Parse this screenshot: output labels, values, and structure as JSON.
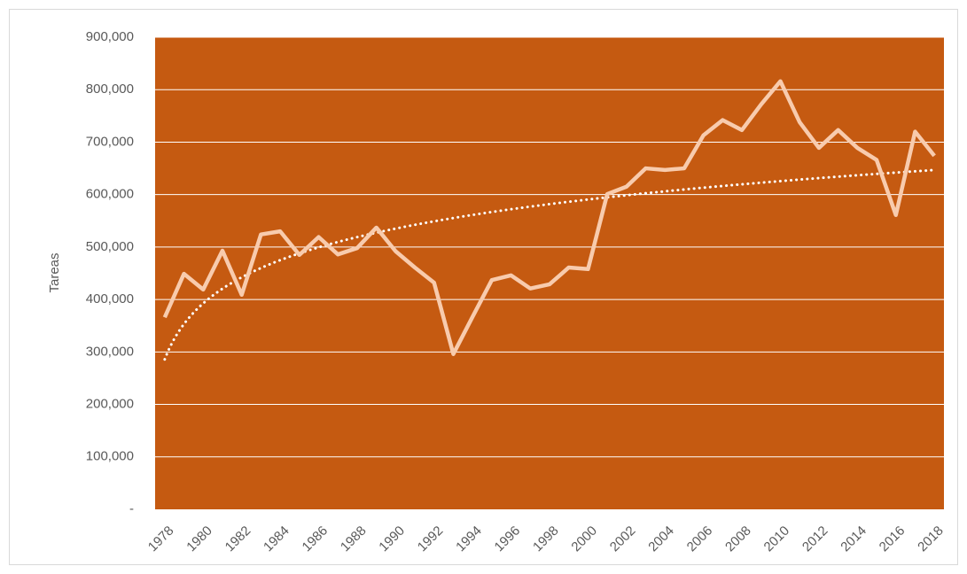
{
  "chart_data": {
    "type": "line",
    "y_label": "Tareas",
    "categories": [
      "1978",
      null,
      "1980",
      null,
      "1982",
      null,
      "1984",
      null,
      "1986",
      null,
      "1988",
      null,
      "1990",
      null,
      "1992",
      null,
      "1994",
      null,
      "1996",
      null,
      "1998",
      null,
      "2000",
      null,
      "2002",
      null,
      "2004",
      null,
      "2006",
      null,
      "2008",
      null,
      "2010",
      null,
      "2012",
      null,
      "2014",
      null,
      "2016",
      null,
      "2018"
    ],
    "series": [
      {
        "name": "Tareas",
        "color": "#F8CBAD",
        "values": [
          366000,
          449000,
          419000,
          493000,
          409000,
          524000,
          530000,
          485000,
          519000,
          486000,
          498000,
          537000,
          492000,
          461000,
          432000,
          296000,
          367000,
          437000,
          446000,
          421000,
          429000,
          461000,
          458000,
          601000,
          615000,
          650000,
          647000,
          650000,
          713000,
          742000,
          723000,
          772000,
          816000,
          738000,
          689000,
          723000,
          689000,
          666000,
          561000,
          720000,
          674000
        ]
      }
    ],
    "trendline": {
      "type": "logarithmic",
      "color": "#FFFFFF",
      "style": "dotted"
    },
    "ylim": [
      0,
      900000
    ],
    "yticks": [
      {
        "value": 0,
        "label": "-"
      },
      {
        "value": 100000,
        "label": "100,000"
      },
      {
        "value": 200000,
        "label": "200,000"
      },
      {
        "value": 300000,
        "label": "300,000"
      },
      {
        "value": 400000,
        "label": "400,000"
      },
      {
        "value": 500000,
        "label": "500,000"
      },
      {
        "value": 600000,
        "label": "600,000"
      },
      {
        "value": 700000,
        "label": "700,000"
      },
      {
        "value": 800000,
        "label": "800,000"
      },
      {
        "value": 900000,
        "label": "900,000"
      }
    ],
    "grid": true,
    "plot_background": "#C55A11"
  }
}
